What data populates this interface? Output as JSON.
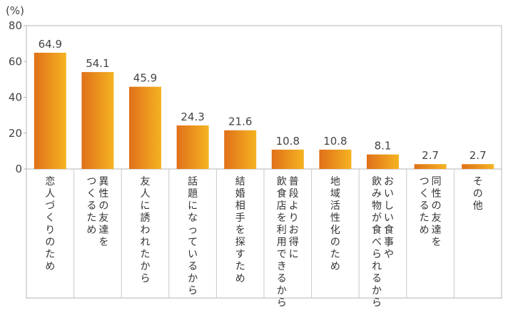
{
  "chart_data": {
    "type": "bar",
    "unit": "(%)",
    "ylim": [
      0,
      80
    ],
    "yticks": [
      0,
      20,
      40,
      60,
      80
    ],
    "grid": false,
    "categories": [
      "恋人づくりのため",
      "異性の友達をつくるため",
      "友人に誘われたから",
      "話題になっているから",
      "結婚相手を探すため",
      "普段よりお得に飲食店を利用できるから",
      "地域活性化のため",
      "おいしい食事や飲み物が食べられるから",
      "同性の友達をつくるため",
      "その他"
    ],
    "category_lines": [
      [
        "恋人づくりのため"
      ],
      [
        "異性の友達を",
        "つくるため"
      ],
      [
        "友人に誘われたから"
      ],
      [
        "話題になっているから"
      ],
      [
        "結婚相手を探すため"
      ],
      [
        "普段よりお得に",
        "飲食店を利用できるから"
      ],
      [
        "地域活性化のため"
      ],
      [
        "おいしい食事や",
        "飲み物が食べられるから"
      ],
      [
        "同性の友達を",
        "つくるため"
      ],
      [
        "その他"
      ]
    ],
    "values": [
      64.9,
      54.1,
      45.9,
      24.3,
      21.6,
      10.8,
      10.8,
      8.1,
      2.7,
      2.7
    ],
    "data_labels": [
      "64.9",
      "54.1",
      "45.9",
      "24.3",
      "21.6",
      "10.8",
      "10.8",
      "8.1",
      "2.7",
      "2.7"
    ],
    "colors": {
      "bar_dark": "#e0701a",
      "bar_light": "#f5b321",
      "frame": "#b5b5b5",
      "divider": "#c8c8c8"
    }
  }
}
